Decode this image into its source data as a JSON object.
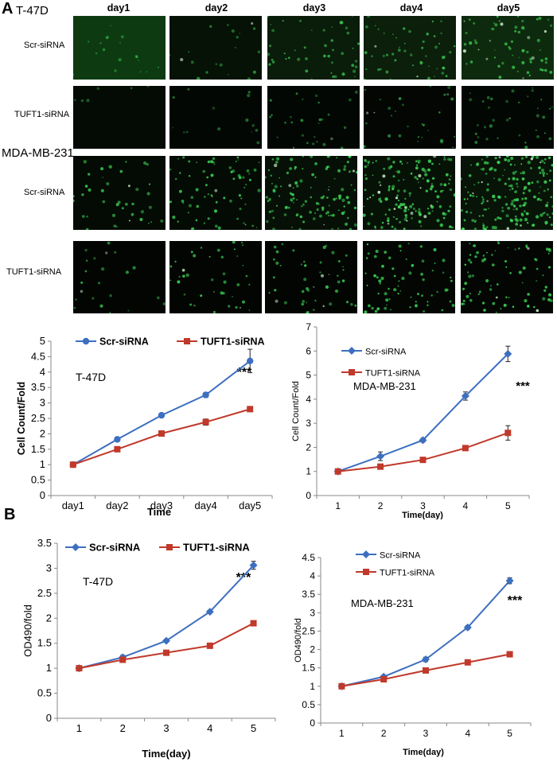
{
  "figure": {
    "panel_a_letter": "A",
    "panel_b_letter": "B",
    "t47d_title": "T-47D",
    "mda_title": "MDA-MB-231",
    "day_headers": [
      "day1",
      "day2",
      "day3",
      "day4",
      "day5"
    ],
    "row_labels": [
      "Scr-siRNA",
      "TUFT1-siRNA",
      "Scr-siRNA",
      "TUFT1-siRNA"
    ]
  },
  "colors": {
    "blue": "#3d6fc0",
    "red": "#c0392b",
    "cell_green": "#3fe05a",
    "cell_bright": "#d8ffd8"
  },
  "images": [
    {
      "row": 0,
      "col": 0,
      "density": 18,
      "brightness": 0.5,
      "background": "#0d3a10"
    },
    {
      "row": 0,
      "col": 1,
      "density": 20,
      "brightness": 0.6,
      "background": "#061206"
    },
    {
      "row": 0,
      "col": 2,
      "density": 45,
      "brightness": 0.7,
      "background": "#0a1c0a"
    },
    {
      "row": 0,
      "col": 3,
      "density": 55,
      "brightness": 0.7,
      "background": "#0b1f0b"
    },
    {
      "row": 0,
      "col": 4,
      "density": 65,
      "brightness": 0.8,
      "background": "#0e2a0e"
    },
    {
      "row": 1,
      "col": 0,
      "density": 6,
      "brightness": 0.4,
      "background": "#040a04"
    },
    {
      "row": 1,
      "col": 1,
      "density": 14,
      "brightness": 0.5,
      "background": "#030703"
    },
    {
      "row": 1,
      "col": 2,
      "density": 28,
      "brightness": 0.6,
      "background": "#030703"
    },
    {
      "row": 1,
      "col": 3,
      "density": 32,
      "brightness": 0.6,
      "background": "#030603"
    },
    {
      "row": 1,
      "col": 4,
      "density": 36,
      "brightness": 0.6,
      "background": "#030703"
    },
    {
      "row": 2,
      "col": 0,
      "density": 40,
      "brightness": 0.8,
      "background": "#040a04"
    },
    {
      "row": 2,
      "col": 1,
      "density": 70,
      "brightness": 0.85,
      "background": "#040a04"
    },
    {
      "row": 2,
      "col": 2,
      "density": 120,
      "brightness": 0.85,
      "background": "#061006"
    },
    {
      "row": 2,
      "col": 3,
      "density": 160,
      "brightness": 0.9,
      "background": "#071207"
    },
    {
      "row": 2,
      "col": 4,
      "density": 190,
      "brightness": 0.9,
      "background": "#081408"
    },
    {
      "row": 3,
      "col": 0,
      "density": 22,
      "brightness": 0.7,
      "background": "#020502"
    },
    {
      "row": 3,
      "col": 1,
      "density": 40,
      "brightness": 0.85,
      "background": "#020502"
    },
    {
      "row": 3,
      "col": 2,
      "density": 48,
      "brightness": 0.85,
      "background": "#020502"
    },
    {
      "row": 3,
      "col": 3,
      "density": 70,
      "brightness": 0.9,
      "background": "#030603"
    },
    {
      "row": 3,
      "col": 4,
      "density": 80,
      "brightness": 0.9,
      "background": "#030603"
    }
  ],
  "chart_data": [
    {
      "type": "line",
      "panel": "A",
      "annotation": "T-47D",
      "significance": "***",
      "xlabel": "Time",
      "ylabel": "Cell Count/Fold",
      "categories": [
        "day1",
        "day2",
        "day3",
        "day4",
        "day5"
      ],
      "ylim": [
        0,
        5
      ],
      "yticks": [
        "0",
        "0.5",
        "1",
        "1.5",
        "2",
        "2.5",
        "3",
        "3.5",
        "4",
        "4.5",
        "5"
      ],
      "marker_style": [
        "circle",
        "square"
      ],
      "legend": "top-left",
      "series": [
        {
          "name": "Scr-siRNA",
          "values": [
            1.0,
            1.82,
            2.6,
            3.26,
            4.36
          ],
          "errors": [
            0.03,
            0.04,
            0.05,
            0.08,
            0.38
          ]
        },
        {
          "name": "TUFT1-siRNA",
          "values": [
            1.0,
            1.5,
            2.01,
            2.38,
            2.8
          ],
          "errors": [
            0.02,
            0.04,
            0.04,
            0.1,
            0.06
          ]
        }
      ]
    },
    {
      "type": "line",
      "panel": "A",
      "annotation": "MDA-MB-231",
      "significance": "***",
      "xlabel": "Time(day)",
      "ylabel": "Cell Count/Fold",
      "categories": [
        "1",
        "2",
        "3",
        "4",
        "5"
      ],
      "ylim": [
        0,
        7
      ],
      "yticks": [
        "0",
        "1",
        "2",
        "3",
        "4",
        "5",
        "6",
        "7"
      ],
      "marker_style": [
        "diamond",
        "square"
      ],
      "legend": "top-left",
      "series": [
        {
          "name": "Scr-siRNA",
          "values": [
            1.0,
            1.63,
            2.3,
            4.13,
            5.88
          ],
          "errors": [
            0.05,
            0.18,
            0.08,
            0.17,
            0.32
          ]
        },
        {
          "name": "TUFT1-siRNA",
          "values": [
            1.0,
            1.2,
            1.48,
            1.97,
            2.6
          ],
          "errors": [
            0.05,
            0.06,
            0.06,
            0.06,
            0.3
          ]
        }
      ]
    },
    {
      "type": "line",
      "panel": "B",
      "annotation": "T-47D",
      "significance": "***",
      "xlabel": "Time(day)",
      "ylabel": "OD490/fold",
      "categories": [
        "1",
        "2",
        "3",
        "4",
        "5"
      ],
      "ylim": [
        0,
        3.5
      ],
      "yticks": [
        "0",
        "0.5",
        "1",
        "1.5",
        "2",
        "2.5",
        "3",
        "3.5"
      ],
      "marker_style": [
        "diamond",
        "square"
      ],
      "legend": "top-left",
      "series": [
        {
          "name": "Scr-siRNA",
          "values": [
            1.0,
            1.22,
            1.55,
            2.13,
            3.06
          ],
          "errors": [
            0.03,
            0.04,
            0.03,
            0.03,
            0.08
          ]
        },
        {
          "name": "TUFT1-siRNA",
          "values": [
            1.0,
            1.17,
            1.31,
            1.45,
            1.9
          ],
          "errors": [
            0.05,
            0.04,
            0.03,
            0.03,
            0.03
          ]
        }
      ]
    },
    {
      "type": "line",
      "panel": "B",
      "annotation": "MDA-MB-231",
      "significance": "***",
      "xlabel": "Time(day)",
      "ylabel": "OD490/fold",
      "categories": [
        "1",
        "2",
        "3",
        "4",
        "5"
      ],
      "ylim": [
        0,
        4.5
      ],
      "yticks": [
        "0",
        "0.5",
        "1",
        "1.5",
        "2",
        "2.5",
        "3",
        "3.5",
        "4",
        "4.5"
      ],
      "marker_style": [
        "diamond",
        "square"
      ],
      "legend": "top-left",
      "series": [
        {
          "name": "Scr-siRNA",
          "values": [
            1.0,
            1.26,
            1.73,
            2.6,
            3.87
          ],
          "errors": [
            0.03,
            0.04,
            0.06,
            0.05,
            0.08
          ]
        },
        {
          "name": "TUFT1-siRNA",
          "values": [
            1.0,
            1.19,
            1.43,
            1.65,
            1.87
          ],
          "errors": [
            0.03,
            0.03,
            0.03,
            0.03,
            0.03
          ]
        }
      ]
    }
  ]
}
